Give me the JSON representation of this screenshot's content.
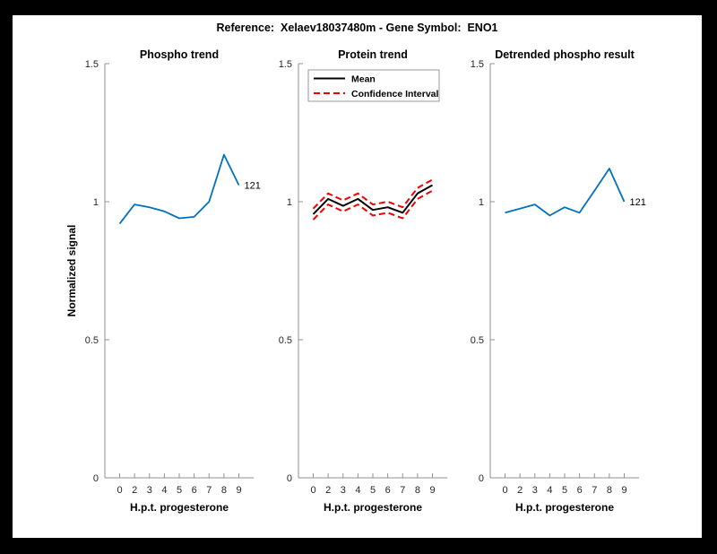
{
  "window": {
    "border_color": "#000000",
    "canvas_color": "#ffffff"
  },
  "figure_title": "Reference:  Xelaev18037480m - Gene Symbol:  ENO1",
  "colors": {
    "line_blue": "#0072BD",
    "line_black": "#000000",
    "line_red": "#f00000",
    "axis": "#909090",
    "tick_text": "#262626",
    "legend_border": "#999999"
  },
  "chart_data": [
    {
      "type": "line",
      "title": "Phospho trend",
      "xlabel": "H.p.t. progesterone",
      "ylabel": "Normalized signal",
      "x_tick_labels": [
        "0",
        "2",
        "3",
        "4",
        "5",
        "6",
        "7",
        "8",
        "9"
      ],
      "y_ticks": [
        0,
        0.5,
        1,
        1.5
      ],
      "y_tick_labels": [
        "0",
        "0.5",
        "1",
        "1.5"
      ],
      "ylim": [
        0,
        1.5
      ],
      "grid": false,
      "series": [
        {
          "name": "phospho-signal",
          "color": "#0072BD",
          "style": "solid",
          "width": 1.8,
          "values": [
            0.92,
            0.99,
            0.98,
            0.965,
            0.94,
            0.945,
            1.0,
            1.17,
            1.06
          ]
        }
      ],
      "end_annotation": "121",
      "legend_entries": null
    },
    {
      "type": "line",
      "title": "Protein trend",
      "xlabel": "H.p.t. progesterone",
      "ylabel": null,
      "x_tick_labels": [
        "0",
        "2",
        "3",
        "4",
        "5",
        "6",
        "7",
        "8",
        "9"
      ],
      "y_ticks": [
        0,
        0.5,
        1,
        1.5
      ],
      "y_tick_labels": [
        "0",
        "0.5",
        "1",
        "1.5"
      ],
      "ylim": [
        0,
        1.5
      ],
      "grid": false,
      "series": [
        {
          "name": "protein-mean",
          "color": "#000000",
          "style": "solid",
          "width": 2,
          "values": [
            0.955,
            1.01,
            0.985,
            1.01,
            0.97,
            0.98,
            0.96,
            1.03,
            1.06
          ]
        },
        {
          "name": "confidence-upper",
          "color": "#f00000",
          "style": "dashed",
          "width": 2,
          "values": [
            0.975,
            1.03,
            1.005,
            1.03,
            0.99,
            1.0,
            0.98,
            1.05,
            1.08
          ]
        },
        {
          "name": "confidence-lower",
          "color": "#f00000",
          "style": "dashed",
          "width": 2,
          "values": [
            0.935,
            0.99,
            0.965,
            0.99,
            0.95,
            0.96,
            0.94,
            1.01,
            1.04
          ]
        }
      ],
      "end_annotation": null,
      "legend_entries": [
        {
          "label": "Mean",
          "color": "#000000",
          "style": "solid"
        },
        {
          "label": "Confidence Interval",
          "color": "#f00000",
          "style": "dashed"
        }
      ]
    },
    {
      "type": "line",
      "title": "Detrended phospho result",
      "xlabel": "H.p.t. progesterone",
      "ylabel": null,
      "x_tick_labels": [
        "0",
        "2",
        "3",
        "4",
        "5",
        "6",
        "7",
        "8",
        "9"
      ],
      "y_ticks": [
        0,
        0.5,
        1,
        1.5
      ],
      "y_tick_labels": [
        "0",
        "0.5",
        "1",
        "1.5"
      ],
      "ylim": [
        0,
        1.5
      ],
      "grid": false,
      "series": [
        {
          "name": "detrended-phospho",
          "color": "#0072BD",
          "style": "solid",
          "width": 1.8,
          "values": [
            0.96,
            0.975,
            0.99,
            0.95,
            0.98,
            0.96,
            1.04,
            1.12,
            1.0
          ]
        }
      ],
      "end_annotation": "121",
      "legend_entries": null
    }
  ]
}
